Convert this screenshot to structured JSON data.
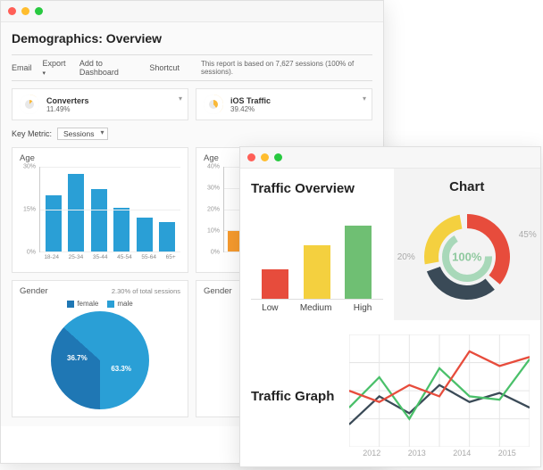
{
  "back": {
    "title": "Demographics: Overview",
    "toolbar": {
      "email": "Email",
      "export": "Export",
      "add_dashboard": "Add to Dashboard",
      "shortcut": "Shortcut",
      "note": "This report is based on 7,627 sessions (100% of sessions)."
    },
    "kpis": [
      {
        "label": "Converters",
        "value": "11.49%",
        "color": "#f9b93a",
        "pct": 11.49
      },
      {
        "label": "iOS Traffic",
        "value": "39.42%",
        "color": "#f9b93a",
        "pct": 39.42
      }
    ],
    "key_metric_label": "Key Metric:",
    "key_metric_value": "Sessions",
    "age_chart": {
      "title": "Age",
      "ylim": [
        0,
        30
      ],
      "yticks": [
        0,
        15,
        30
      ],
      "categories": [
        "18-24",
        "25-34",
        "35-44",
        "45-54",
        "55-64",
        "65+"
      ],
      "values": [
        20,
        27.5,
        22,
        15.5,
        12,
        10.5
      ],
      "bar_color": "#2a9fd6",
      "grid_color": "#eeeeee"
    },
    "age_chart2": {
      "title": "Age",
      "ylim": [
        0,
        40
      ],
      "yticks": [
        0,
        10,
        20,
        30,
        40
      ],
      "bar_color": "#f79b2e",
      "first_value": 10
    },
    "gender_chart": {
      "title": "Gender",
      "subtitle": "2.30% of total sessions",
      "legend": [
        {
          "label": "female",
          "color": "#1f77b4"
        },
        {
          "label": "male",
          "color": "#2a9fd6"
        }
      ],
      "slices": [
        {
          "label": "36.7%",
          "value": 36.7,
          "color": "#1f77b4"
        },
        {
          "label": "63.3%",
          "value": 63.3,
          "color": "#2a9fd6"
        }
      ]
    },
    "gender_chart2": {
      "title": "Gender"
    }
  },
  "front": {
    "traffic_overview": {
      "title": "Traffic Overview",
      "categories": [
        "Low",
        "Medium",
        "High"
      ],
      "values": [
        30,
        55,
        75
      ],
      "ylim": [
        0,
        100
      ],
      "colors": [
        "#e74c3c",
        "#f4d03f",
        "#6fbf73"
      ]
    },
    "chart": {
      "title": "Chart",
      "center_label": "100%",
      "left_label": "20%",
      "right_label": "45%",
      "slices": [
        {
          "color": "#e74c3c",
          "start": 0,
          "end": 130
        },
        {
          "color": "#3a4a57",
          "start": 140,
          "end": 250
        },
        {
          "color": "#f4d03f",
          "start": 260,
          "end": 350
        }
      ],
      "inner_color": "#a8d8b9"
    },
    "traffic_graph": {
      "title": "Traffic Graph",
      "xlabels": [
        "2012",
        "2013",
        "2014",
        "2015"
      ],
      "ylim": [
        0,
        100
      ],
      "grid_color": "#e6e6e6",
      "series": [
        {
          "color": "#3a4a57",
          "points": [
            20,
            45,
            30,
            55,
            40,
            48,
            35
          ]
        },
        {
          "color": "#4ac06a",
          "points": [
            35,
            62,
            25,
            70,
            45,
            42,
            78
          ]
        },
        {
          "color": "#e74c3c",
          "points": [
            50,
            40,
            55,
            45,
            85,
            72,
            80
          ]
        }
      ]
    }
  }
}
